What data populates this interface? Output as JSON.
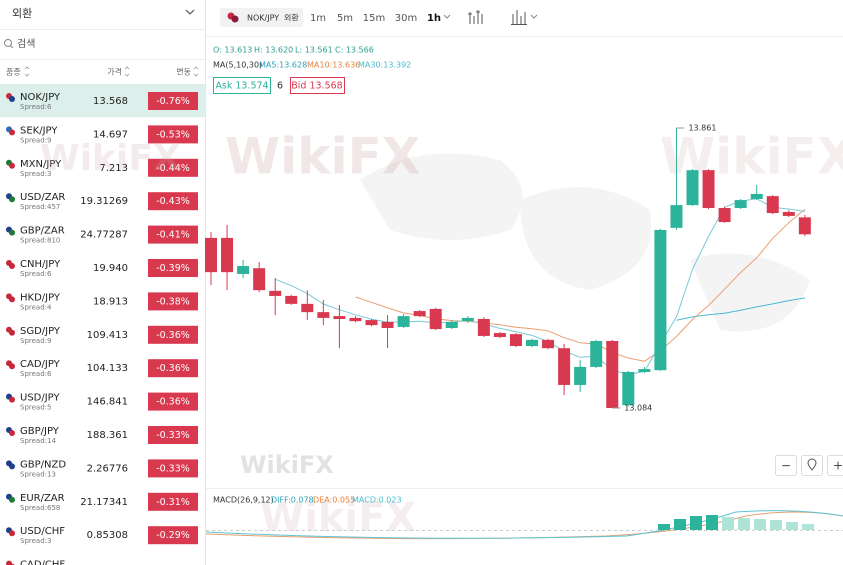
{
  "sidebar": {
    "title": "외환",
    "search_placeholder": "검색",
    "columns": [
      "품종",
      "가격",
      "변동"
    ],
    "rows": [
      {
        "symbol": "NOK/JPY",
        "spread": "Spread:6",
        "price": "13.568",
        "change": "-0.76%"
      },
      {
        "symbol": "SEK/JPY",
        "spread": "Spread:9",
        "price": "14.697",
        "change": "-0.53%"
      },
      {
        "symbol": "MXN/JPY",
        "spread": "Spread:3",
        "price": "7.213",
        "change": "-0.44%"
      },
      {
        "symbol": "USD/ZAR",
        "spread": "Spread:457",
        "price": "19.31269",
        "change": "-0.43%"
      },
      {
        "symbol": "GBP/ZAR",
        "spread": "Spread:810",
        "price": "24.77287",
        "change": "-0.41%"
      },
      {
        "symbol": "CNH/JPY",
        "spread": "Spread:6",
        "price": "19.940",
        "change": "-0.39%"
      },
      {
        "symbol": "HKD/JPY",
        "spread": "Spread:4",
        "price": "18.913",
        "change": "-0.38%"
      },
      {
        "symbol": "SGD/JPY",
        "spread": "Spread:9",
        "price": "109.413",
        "change": "-0.36%"
      },
      {
        "symbol": "CAD/JPY",
        "spread": "Spread:6",
        "price": "104.133",
        "change": "-0.36%"
      },
      {
        "symbol": "USD/JPY",
        "spread": "Spread:5",
        "price": "146.841",
        "change": "-0.36%"
      },
      {
        "symbol": "GBP/JPY",
        "spread": "Spread:14",
        "price": "188.361",
        "change": "-0.33%"
      },
      {
        "symbol": "GBP/NZD",
        "spread": "Spread:13",
        "price": "2.26776",
        "change": "-0.33%"
      },
      {
        "symbol": "EUR/ZAR",
        "spread": "Spread:658",
        "price": "21.17341",
        "change": "-0.31%"
      },
      {
        "symbol": "USD/CHF",
        "spread": "Spread:3",
        "price": "0.85308",
        "change": "-0.29%"
      },
      {
        "symbol": "CAD/CHF"
      }
    ]
  },
  "toolbar": {
    "symbol": "NOK/JPY",
    "market": "외환",
    "intervals": [
      "1m",
      "5m",
      "15m",
      "30m",
      "1h"
    ],
    "active_interval": 4
  },
  "ohlc": {
    "open": "O: 13.613",
    "high": "H: 13.620",
    "low": "L: 13.561",
    "close": "C: 13.566"
  },
  "ma": {
    "label": "MA(5,10,30)",
    "ma5": "MA5:13.628",
    "ma10": "MA10:13.636",
    "ma30": "MA30:13.392"
  },
  "quote": {
    "ask": "Ask 13.574",
    "spread": "6",
    "bid": "Bid 13.568"
  },
  "chart": {
    "high_label": 13.861,
    "low_label": 13.084,
    "candles": [
      [
        13.556,
        13.572,
        13.425,
        13.461
      ],
      [
        13.556,
        13.592,
        13.411,
        13.461
      ],
      [
        13.456,
        13.495,
        13.445,
        13.478
      ],
      [
        13.472,
        13.489,
        13.406,
        13.411
      ],
      [
        13.409,
        13.445,
        13.342,
        13.395
      ],
      [
        13.395,
        13.398,
        13.37,
        13.373
      ],
      [
        13.373,
        13.411,
        13.328,
        13.35
      ],
      [
        13.35,
        13.384,
        13.314,
        13.334
      ],
      [
        13.339,
        13.37,
        13.25,
        13.331
      ],
      [
        13.334,
        13.339,
        13.322,
        13.325
      ],
      [
        13.328,
        13.331,
        13.311,
        13.314
      ],
      [
        13.323,
        13.342,
        13.25,
        13.306
      ],
      [
        13.309,
        13.345,
        13.306,
        13.339
      ],
      [
        13.353,
        13.356,
        13.336,
        13.339
      ],
      [
        13.359,
        13.362,
        13.3,
        13.303
      ],
      [
        13.306,
        13.328,
        13.303,
        13.323
      ],
      [
        13.325,
        13.339,
        13.32,
        13.334
      ],
      [
        13.331,
        13.336,
        13.281,
        13.284
      ],
      [
        13.292,
        13.295,
        13.278,
        13.281
      ],
      [
        13.289,
        13.292,
        13.253,
        13.256
      ],
      [
        13.256,
        13.276,
        13.253,
        13.273
      ],
      [
        13.273,
        13.276,
        13.247,
        13.25
      ],
      [
        13.25,
        13.262,
        13.12,
        13.148
      ],
      [
        13.148,
        13.217,
        13.128,
        13.198
      ],
      [
        13.198,
        13.273,
        13.195,
        13.27
      ],
      [
        13.27,
        13.273,
        13.084,
        13.084
      ],
      [
        13.092,
        13.187,
        13.089,
        13.184
      ],
      [
        13.184,
        13.198,
        13.181,
        13.192
      ],
      [
        13.189,
        13.581,
        13.187,
        13.578
      ],
      [
        13.584,
        13.861,
        13.578,
        13.647
      ],
      [
        13.647,
        13.747,
        13.645,
        13.744
      ],
      [
        13.744,
        13.747,
        13.636,
        13.639
      ],
      [
        13.639,
        13.642,
        13.598,
        13.6
      ],
      [
        13.639,
        13.664,
        13.636,
        13.661
      ],
      [
        13.664,
        13.703,
        13.661,
        13.678
      ],
      [
        13.672,
        13.675,
        13.622,
        13.625
      ],
      [
        13.628,
        13.633,
        13.614,
        13.617
      ],
      [
        13.613,
        13.62,
        13.561,
        13.566
      ]
    ]
  },
  "macd": {
    "label": "MACD(26,9,12)",
    "diff": "DIFF:0.078",
    "dea": "DEA:0.055",
    "macd": "MACD:0.023"
  },
  "watermark": "WikiFX",
  "controls": [
    "−",
    "+"
  ]
}
